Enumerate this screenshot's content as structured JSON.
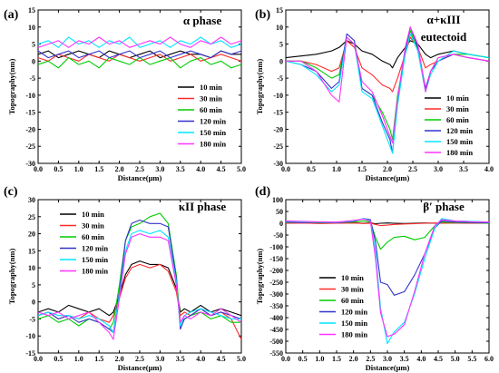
{
  "legend_labels": [
    "10 min",
    "30 min",
    "60 min",
    "120 min",
    "150 min",
    "180 min"
  ],
  "series_colors": [
    "#000000",
    "#ff2a2a",
    "#00cc00",
    "#3333cc",
    "#00e5ff",
    "#ff33ff"
  ],
  "chart_data": [
    {
      "type": "line",
      "panel_label": "(a)",
      "title": "α phase",
      "xlabel": "Distance(μm)",
      "ylabel": "Topography(nm)",
      "xlim": [
        0,
        5
      ],
      "ylim": [
        -30,
        15
      ],
      "xticks": [
        0.0,
        0.5,
        1.0,
        1.5,
        2.0,
        2.5,
        3.0,
        3.5,
        4.0,
        4.5,
        5.0
      ],
      "yticks": [
        -30,
        -25,
        -20,
        -15,
        -10,
        -5,
        0,
        5,
        10,
        15
      ],
      "legend_position": "lower-right",
      "x": [
        0.0,
        0.25,
        0.5,
        0.75,
        1.0,
        1.25,
        1.5,
        1.75,
        2.0,
        2.25,
        2.5,
        2.75,
        3.0,
        3.25,
        3.5,
        3.75,
        4.0,
        4.25,
        4.5,
        4.75,
        5.0
      ],
      "series": [
        {
          "name": "10 min",
          "values": [
            2,
            3,
            1,
            2,
            3,
            2,
            1,
            3,
            2,
            1,
            2,
            3,
            1,
            2,
            3,
            2,
            2,
            1,
            3,
            2,
            2
          ]
        },
        {
          "name": "30 min",
          "values": [
            1,
            0,
            2,
            1,
            0,
            2,
            1,
            0,
            2,
            1,
            0,
            1,
            2,
            0,
            1,
            2,
            0,
            1,
            2,
            1,
            0
          ]
        },
        {
          "name": "60 min",
          "values": [
            -1,
            0,
            -2,
            1,
            -1,
            0,
            -2,
            1,
            0,
            -1,
            1,
            -1,
            0,
            1,
            -2,
            0,
            1,
            -1,
            0,
            -2,
            -1
          ]
        },
        {
          "name": "120 min",
          "values": [
            3,
            1,
            2,
            3,
            1,
            2,
            3,
            1,
            2,
            3,
            1,
            2,
            3,
            1,
            2,
            3,
            2,
            1,
            3,
            2,
            3
          ]
        },
        {
          "name": "150 min",
          "values": [
            5,
            6,
            4,
            7,
            5,
            6,
            4,
            6,
            5,
            7,
            4,
            5,
            6,
            4,
            6,
            5,
            7,
            5,
            6,
            4,
            5
          ]
        },
        {
          "name": "180 min",
          "values": [
            4,
            5,
            6,
            4,
            6,
            5,
            7,
            5,
            6,
            4,
            5,
            6,
            5,
            7,
            5,
            4,
            6,
            5,
            7,
            5,
            6
          ]
        }
      ]
    },
    {
      "type": "line",
      "panel_label": "(b)",
      "title": "α+κIII",
      "title_line2": "eutectoid",
      "xlabel": "Distance(μm)",
      "ylabel": "Topography(nm)",
      "xlim": [
        0,
        4
      ],
      "ylim": [
        -30,
        15
      ],
      "xticks": [
        0.0,
        0.5,
        1.0,
        1.5,
        2.0,
        2.5,
        3.0,
        3.5,
        4.0
      ],
      "yticks": [
        -30,
        -25,
        -20,
        -15,
        -10,
        -5,
        0,
        5,
        10,
        15
      ],
      "legend_position": "lower-right",
      "x": [
        0.0,
        0.3,
        0.6,
        0.9,
        1.05,
        1.2,
        1.35,
        1.5,
        1.7,
        1.9,
        2.05,
        2.1,
        2.2,
        2.35,
        2.45,
        2.6,
        2.75,
        2.85,
        3.0,
        3.3,
        3.6,
        4.0
      ],
      "series": [
        {
          "name": "10 min",
          "values": [
            1,
            1.5,
            2,
            3,
            4,
            6,
            5,
            3,
            2,
            0,
            -1,
            -2,
            1,
            4,
            6,
            5,
            2,
            1,
            2,
            3,
            2,
            1
          ]
        },
        {
          "name": "30 min",
          "values": [
            0,
            0,
            -1,
            -3,
            -2,
            6,
            4,
            -2,
            -4,
            -7,
            -8,
            -9,
            -5,
            2,
            7,
            4,
            -2,
            -1,
            0,
            2,
            1,
            0
          ]
        },
        {
          "name": "60 min",
          "values": [
            0,
            0,
            -2,
            -5,
            -4,
            7,
            5,
            -8,
            -10,
            -15,
            -20,
            -23,
            -10,
            2,
            9,
            3,
            -9,
            -3,
            1,
            2,
            2,
            1
          ]
        },
        {
          "name": "120 min",
          "values": [
            0,
            -1,
            -3,
            -8,
            -6,
            8,
            6,
            -8,
            -10,
            -18,
            -23,
            -27,
            -12,
            3,
            10,
            4,
            -8,
            -3,
            0,
            2,
            1,
            0
          ]
        },
        {
          "name": "150 min",
          "values": [
            0,
            -1,
            -4,
            -9,
            -7,
            7,
            5,
            -9,
            -11,
            -19,
            -25,
            -27,
            -13,
            2,
            8,
            3,
            -9,
            -4,
            0,
            3,
            2,
            1
          ]
        },
        {
          "name": "180 min",
          "values": [
            0,
            0,
            -3,
            -10,
            -12,
            7,
            5,
            -6,
            -9,
            -16,
            -22,
            -24,
            -11,
            4,
            10,
            5,
            -9,
            -3,
            1,
            2,
            1,
            0
          ]
        }
      ]
    },
    {
      "type": "line",
      "panel_label": "(c)",
      "title": "κII phase",
      "xlabel": "Distance(μm)",
      "ylabel": "Topography(nm)",
      "xlim": [
        0,
        5
      ],
      "ylim": [
        -15,
        30
      ],
      "xticks": [
        0.0,
        0.5,
        1.0,
        1.5,
        2.0,
        2.5,
        3.0,
        3.5,
        4.0,
        4.5,
        5.0
      ],
      "yticks": [
        -15,
        -10,
        -5,
        0,
        5,
        10,
        15,
        20,
        25,
        30
      ],
      "legend_position": "center-left",
      "x": [
        0.0,
        0.25,
        0.5,
        0.75,
        1.0,
        1.25,
        1.5,
        1.75,
        1.85,
        2.0,
        2.15,
        2.3,
        2.5,
        2.75,
        3.0,
        3.2,
        3.4,
        3.5,
        3.6,
        3.75,
        4.0,
        4.25,
        4.5,
        4.75,
        5.0
      ],
      "series": [
        {
          "name": "10 min",
          "values": [
            -3,
            -2,
            -3,
            -1,
            -2,
            -3,
            -2,
            -4,
            -3,
            2,
            8,
            11,
            12,
            11,
            11,
            10,
            4,
            -3,
            -2,
            -3,
            -1,
            -3,
            -2,
            -3,
            -4
          ]
        },
        {
          "name": "30 min",
          "values": [
            -4,
            -3,
            -5,
            -4,
            -5,
            -3,
            -5,
            -6,
            -4,
            1,
            7,
            10,
            11,
            10,
            11,
            9,
            3,
            -4,
            -3,
            -4,
            -2,
            -4,
            -3,
            -5,
            -11
          ]
        },
        {
          "name": "60 min",
          "values": [
            -5,
            -4,
            -6,
            -5,
            -7,
            -5,
            -6,
            -8,
            -6,
            5,
            18,
            22,
            23,
            25,
            26,
            23,
            8,
            -6,
            -5,
            -4,
            -3,
            -5,
            -4,
            -6,
            -6
          ]
        },
        {
          "name": "120 min",
          "values": [
            -4,
            -3,
            -5,
            -4,
            -6,
            -5,
            -6,
            -8,
            -9,
            3,
            18,
            23,
            24,
            23,
            23,
            22,
            7,
            -8,
            -5,
            -4,
            -2,
            -4,
            -3,
            -4,
            -5
          ]
        },
        {
          "name": "150 min",
          "values": [
            -4,
            -3,
            -4,
            -4,
            -5,
            -4,
            -5,
            -7,
            -9,
            2,
            15,
            20,
            21,
            20,
            21,
            19,
            6,
            -7,
            -4,
            -3,
            -2,
            -3,
            -4,
            -5,
            -5
          ]
        },
        {
          "name": "180 min",
          "values": [
            -3,
            -4,
            -3,
            -5,
            -4,
            -3,
            -6,
            -9,
            -11,
            1,
            14,
            19,
            20,
            19,
            19,
            18,
            5,
            -6,
            -4,
            -5,
            -3,
            -4,
            -2,
            -4,
            -6
          ]
        }
      ]
    },
    {
      "type": "line",
      "panel_label": "(d)",
      "title": "β′ phase",
      "xlabel": "Distance(μm)",
      "ylabel": "Topography(nm)",
      "xlim": [
        0,
        6
      ],
      "ylim": [
        -550,
        100
      ],
      "xticks": [
        0.0,
        0.5,
        1.0,
        1.5,
        2.0,
        2.5,
        3.0,
        3.5,
        4.0,
        4.5,
        5.0,
        5.5,
        6.0
      ],
      "yticks": [
        -550,
        -500,
        -450,
        -400,
        -350,
        -300,
        -250,
        -200,
        -150,
        -100,
        -50,
        0,
        50,
        100
      ],
      "legend_position": "lower-left",
      "x": [
        0.0,
        0.5,
        1.0,
        1.5,
        2.0,
        2.3,
        2.5,
        2.65,
        2.8,
        3.0,
        3.2,
        3.5,
        3.8,
        4.1,
        4.4,
        4.6,
        5.0,
        5.5,
        6.0
      ],
      "series": [
        {
          "name": "10 min",
          "values": [
            0,
            2,
            0,
            1,
            2,
            0,
            1,
            -2,
            0,
            1,
            0,
            -1,
            0,
            1,
            0,
            1,
            2,
            0,
            1
          ]
        },
        {
          "name": "30 min",
          "values": [
            0,
            1,
            -1,
            0,
            1,
            -1,
            0,
            -5,
            -10,
            -8,
            -5,
            -3,
            -2,
            0,
            1,
            0,
            1,
            0,
            0
          ]
        },
        {
          "name": "60 min",
          "values": [
            3,
            5,
            2,
            4,
            5,
            10,
            5,
            -60,
            -110,
            -80,
            -60,
            -55,
            -70,
            -60,
            -10,
            5,
            3,
            2,
            0
          ]
        },
        {
          "name": "120 min",
          "values": [
            5,
            3,
            4,
            2,
            8,
            20,
            15,
            -80,
            -250,
            -260,
            -305,
            -290,
            -220,
            -130,
            -20,
            10,
            5,
            3,
            2
          ]
        },
        {
          "name": "150 min",
          "values": [
            8,
            6,
            5,
            4,
            10,
            20,
            10,
            -120,
            -360,
            -510,
            -460,
            -420,
            -300,
            -150,
            -20,
            20,
            10,
            8,
            5
          ]
        },
        {
          "name": "180 min",
          "values": [
            10,
            8,
            6,
            5,
            12,
            18,
            8,
            -150,
            -380,
            -480,
            -470,
            -430,
            -290,
            -130,
            -10,
            15,
            10,
            6,
            5
          ]
        }
      ]
    }
  ]
}
